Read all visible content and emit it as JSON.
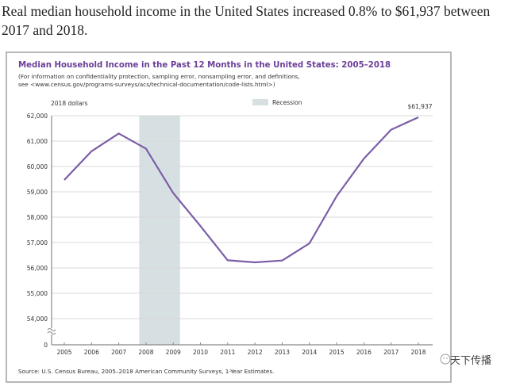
{
  "headline": "Real median household income in the United States increased 0.8% to $61,937 between 2017 and 2018.",
  "chart_header": {
    "title": "Median Household Income in the Past 12 Months in the United States: 2005–2018",
    "subtitle_line1": "(For information on confidentiality protection, sampling error, nonsampling error, and definitions,",
    "subtitle_line2": "see <www.census.gov/programs-surveys/acs/technical-documentation/code-lists.html>)"
  },
  "source": "Source: U.S. Census Bureau, 2005–2018 American Community Surveys, 1-Year Estimates.",
  "watermark": "天下传播",
  "colors": {
    "line": "#7b5ea7",
    "title": "#6b3f98",
    "recession": "#d6e0e2",
    "grid": "#d9d9d9",
    "axis": "#888888"
  },
  "chart_data": {
    "type": "line",
    "title": "Median Household Income in the Past 12 Months in the United States: 2005–2018",
    "ylabel": "2018 dollars",
    "xlabel": "",
    "x": [
      2005,
      2006,
      2007,
      2008,
      2009,
      2010,
      2011,
      2012,
      2013,
      2014,
      2015,
      2016,
      2017,
      2018
    ],
    "series": [
      {
        "name": "Median household income",
        "values": [
          59470,
          60600,
          61300,
          60700,
          58950,
          57650,
          56300,
          56220,
          56290,
          56970,
          58830,
          60310,
          61450,
          61937
        ]
      }
    ],
    "ylim": [
      54000,
      62000
    ],
    "y_break": true,
    "y_zero_label": "0",
    "yticks": [
      54000,
      55000,
      56000,
      57000,
      58000,
      59000,
      60000,
      61000,
      62000
    ],
    "ytick_labels": [
      "54,000",
      "55,000",
      "56,000",
      "57,000",
      "58,000",
      "59,000",
      "60,000",
      "61,000",
      "62,000"
    ],
    "xtick_labels": [
      "2005",
      "2006",
      "2007",
      "2008",
      "2009",
      "2010",
      "2011",
      "2012",
      "2013",
      "2014",
      "2015",
      "2016",
      "2017",
      "2018"
    ],
    "recession": {
      "label": "Recession",
      "start": 2007.75,
      "end": 2009.25
    },
    "annotation": {
      "x": 2018,
      "text": "$61,937"
    },
    "grid": true,
    "legend": "top-center"
  }
}
